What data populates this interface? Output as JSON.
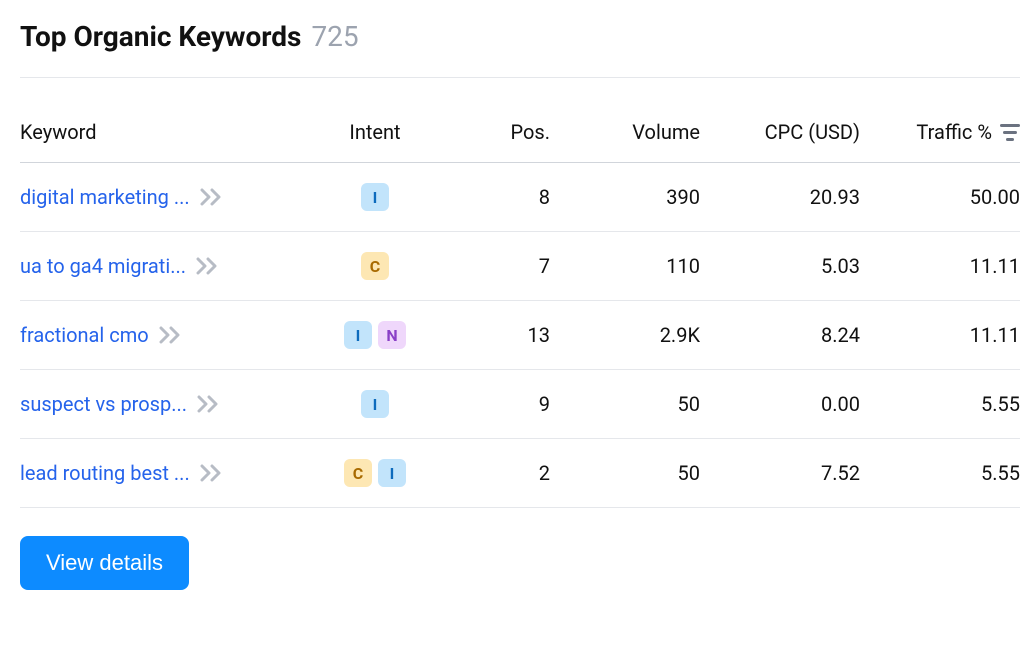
{
  "header": {
    "title": "Top Organic Keywords",
    "count": "725"
  },
  "columns": {
    "keyword": "Keyword",
    "intent": "Intent",
    "pos": "Pos.",
    "volume": "Volume",
    "cpc": "CPC (USD)",
    "traffic": "Traffic %"
  },
  "intent_colors": {
    "I": {
      "bg": "#c2e4fb",
      "fg": "#0d6bbd"
    },
    "C": {
      "bg": "#fde7b3",
      "fg": "#a86a00"
    },
    "N": {
      "bg": "#efd7fb",
      "fg": "#8a3fc7"
    }
  },
  "rows": [
    {
      "keyword": "digital marketing ...",
      "intent": [
        "I"
      ],
      "pos": "8",
      "volume": "390",
      "cpc": "20.93",
      "traffic": "50.00"
    },
    {
      "keyword": "ua to ga4 migrati...",
      "intent": [
        "C"
      ],
      "pos": "7",
      "volume": "110",
      "cpc": "5.03",
      "traffic": "11.11"
    },
    {
      "keyword": "fractional cmo",
      "intent": [
        "I",
        "N"
      ],
      "pos": "13",
      "volume": "2.9K",
      "cpc": "8.24",
      "traffic": "11.11"
    },
    {
      "keyword": "suspect vs prosp...",
      "intent": [
        "I"
      ],
      "pos": "9",
      "volume": "50",
      "cpc": "0.00",
      "traffic": "5.55"
    },
    {
      "keyword": "lead routing best ...",
      "intent": [
        "C",
        "I"
      ],
      "pos": "2",
      "volume": "50",
      "cpc": "7.52",
      "traffic": "5.55"
    }
  ],
  "footer": {
    "view_details": "View details"
  },
  "style": {
    "link_color": "#2563eb",
    "button_bg": "#0d8bff",
    "button_fg": "#ffffff",
    "header_count_color": "#9ca3af"
  }
}
